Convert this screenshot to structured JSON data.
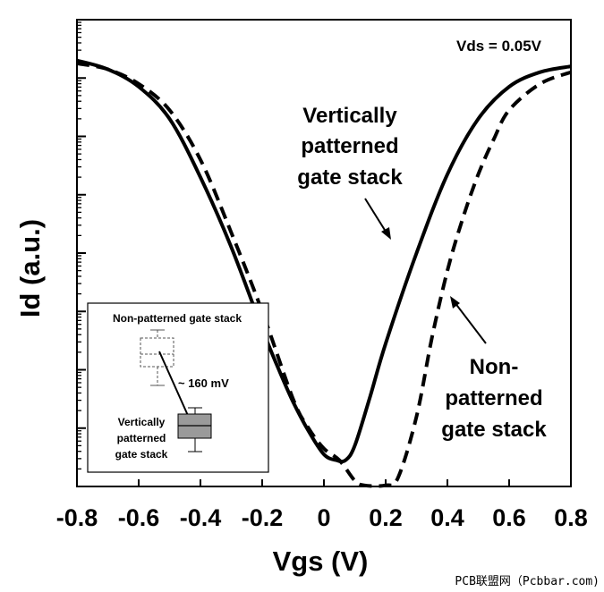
{
  "chart_data": {
    "type": "line",
    "xlabel": "Vgs (V)",
    "ylabel": "Id (a.u.)",
    "xlim": [
      -0.8,
      0.8
    ],
    "ylim": [
      0,
      8
    ],
    "y_scale": "log",
    "x_ticks": [
      "-0.8",
      "-0.6",
      "-0.4",
      "-0.2",
      "0",
      "0.2",
      "0.4",
      "0.6",
      "0.8"
    ],
    "condition": "Vds = 0.05V",
    "series": [
      {
        "name": "Vertically patterned gate stack",
        "style": "solid",
        "color": "#000000",
        "x": [
          -0.8,
          -0.7,
          -0.6,
          -0.5,
          -0.4,
          -0.3,
          -0.2,
          -0.15,
          -0.1,
          -0.05,
          0.0,
          0.04,
          0.07,
          0.1,
          0.15,
          0.2,
          0.3,
          0.4,
          0.5,
          0.6,
          0.7,
          0.8
        ],
        "y": [
          7.3,
          7.15,
          6.85,
          6.3,
          5.3,
          4.1,
          2.7,
          2.05,
          1.45,
          0.95,
          0.55,
          0.45,
          0.45,
          0.7,
          1.55,
          2.45,
          4.0,
          5.35,
          6.3,
          6.85,
          7.1,
          7.2
        ]
      },
      {
        "name": "Non-patterned gate stack",
        "style": "dashed",
        "color": "#000000",
        "x": [
          -0.8,
          -0.7,
          -0.6,
          -0.5,
          -0.4,
          -0.3,
          -0.2,
          -0.1,
          -0.05,
          0.0,
          0.05,
          0.1,
          0.13,
          0.2,
          0.24,
          0.3,
          0.35,
          0.4,
          0.45,
          0.5,
          0.55,
          0.6,
          0.7,
          0.8
        ],
        "y": [
          7.25,
          7.15,
          6.9,
          6.45,
          5.6,
          4.35,
          3.0,
          1.5,
          1.0,
          0.65,
          0.45,
          0.1,
          0.02,
          0.02,
          0.15,
          1.2,
          2.55,
          3.7,
          4.6,
          5.35,
          5.95,
          6.45,
          6.9,
          7.1
        ]
      }
    ],
    "annotations": [
      {
        "lines": [
          "Vertically",
          "patterned",
          "gate stack"
        ]
      },
      {
        "lines": [
          "Non-",
          "patterned",
          "gate stack"
        ]
      }
    ],
    "inset": {
      "top_label": "Non-patterned gate stack",
      "bottom_label": [
        "Vertically",
        "patterned",
        "gate stack"
      ],
      "shift_label": "~ 160 mV"
    }
  },
  "watermark": "PCB联盟网（Pcbbar.com)"
}
